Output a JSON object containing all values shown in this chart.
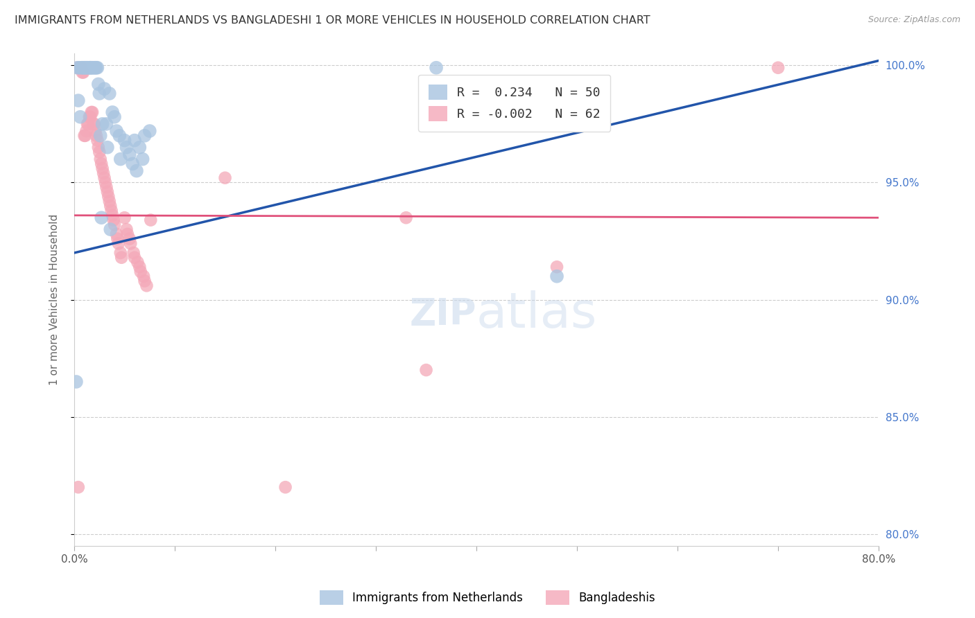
{
  "title": "IMMIGRANTS FROM NETHERLANDS VS BANGLADESHI 1 OR MORE VEHICLES IN HOUSEHOLD CORRELATION CHART",
  "source": "Source: ZipAtlas.com",
  "ylabel": "1 or more Vehicles in Household",
  "xlim": [
    0.0,
    0.8
  ],
  "ylim": [
    0.795,
    1.005
  ],
  "yticks": [
    0.8,
    0.85,
    0.9,
    0.95,
    1.0
  ],
  "ytick_labels": [
    "80.0%",
    "85.0%",
    "90.0%",
    "95.0%",
    "100.0%"
  ],
  "blue_R": 0.234,
  "blue_N": 50,
  "pink_R": -0.002,
  "pink_N": 62,
  "blue_color": "#a8c4e0",
  "pink_color": "#f4a8b8",
  "blue_line_color": "#2255aa",
  "pink_line_color": "#e0507a",
  "background_color": "#ffffff",
  "blue_line_x": [
    0.0,
    0.8
  ],
  "blue_line_y": [
    0.92,
    1.002
  ],
  "pink_line_x": [
    0.0,
    0.8
  ],
  "pink_line_y": [
    0.936,
    0.935
  ],
  "blue_x": [
    0.003,
    0.005,
    0.007,
    0.008,
    0.009,
    0.01,
    0.011,
    0.012,
    0.013,
    0.014,
    0.015,
    0.016,
    0.016,
    0.017,
    0.018,
    0.019,
    0.02,
    0.021,
    0.022,
    0.023,
    0.024,
    0.025,
    0.028,
    0.03,
    0.032,
    0.035,
    0.038,
    0.04,
    0.042,
    0.045,
    0.05,
    0.052,
    0.055,
    0.058,
    0.06,
    0.062,
    0.065,
    0.068,
    0.07,
    0.075,
    0.004,
    0.006,
    0.026,
    0.033,
    0.046,
    0.36,
    0.48,
    0.002,
    0.027,
    0.036
  ],
  "blue_y": [
    0.999,
    0.999,
    0.999,
    0.999,
    0.999,
    0.999,
    0.999,
    0.999,
    0.999,
    0.999,
    0.999,
    0.999,
    0.999,
    0.999,
    0.999,
    0.999,
    0.999,
    0.999,
    0.999,
    0.999,
    0.992,
    0.988,
    0.975,
    0.99,
    0.975,
    0.988,
    0.98,
    0.978,
    0.972,
    0.97,
    0.968,
    0.965,
    0.962,
    0.958,
    0.968,
    0.955,
    0.965,
    0.96,
    0.97,
    0.972,
    0.985,
    0.978,
    0.97,
    0.965,
    0.96,
    0.999,
    0.91,
    0.865,
    0.935,
    0.93
  ],
  "pink_x": [
    0.003,
    0.005,
    0.007,
    0.008,
    0.009,
    0.01,
    0.011,
    0.012,
    0.013,
    0.014,
    0.015,
    0.016,
    0.017,
    0.018,
    0.019,
    0.02,
    0.021,
    0.022,
    0.023,
    0.024,
    0.025,
    0.026,
    0.027,
    0.028,
    0.029,
    0.03,
    0.031,
    0.032,
    0.033,
    0.034,
    0.035,
    0.036,
    0.037,
    0.038,
    0.039,
    0.04,
    0.042,
    0.043,
    0.044,
    0.046,
    0.047,
    0.05,
    0.052,
    0.053,
    0.055,
    0.056,
    0.059,
    0.06,
    0.063,
    0.065,
    0.066,
    0.069,
    0.07,
    0.072,
    0.076,
    0.21,
    0.33,
    0.35,
    0.48,
    0.7,
    0.15,
    0.004
  ],
  "pink_y": [
    0.999,
    0.999,
    0.999,
    0.997,
    0.997,
    0.97,
    0.97,
    0.972,
    0.975,
    0.975,
    0.978,
    0.978,
    0.98,
    0.98,
    0.975,
    0.975,
    0.972,
    0.97,
    0.968,
    0.965,
    0.963,
    0.96,
    0.958,
    0.956,
    0.954,
    0.952,
    0.95,
    0.948,
    0.946,
    0.944,
    0.942,
    0.94,
    0.938,
    0.936,
    0.934,
    0.932,
    0.928,
    0.926,
    0.924,
    0.92,
    0.918,
    0.935,
    0.93,
    0.928,
    0.926,
    0.924,
    0.92,
    0.918,
    0.916,
    0.914,
    0.912,
    0.91,
    0.908,
    0.906,
    0.934,
    0.82,
    0.935,
    0.87,
    0.914,
    0.999,
    0.952,
    0.82
  ]
}
